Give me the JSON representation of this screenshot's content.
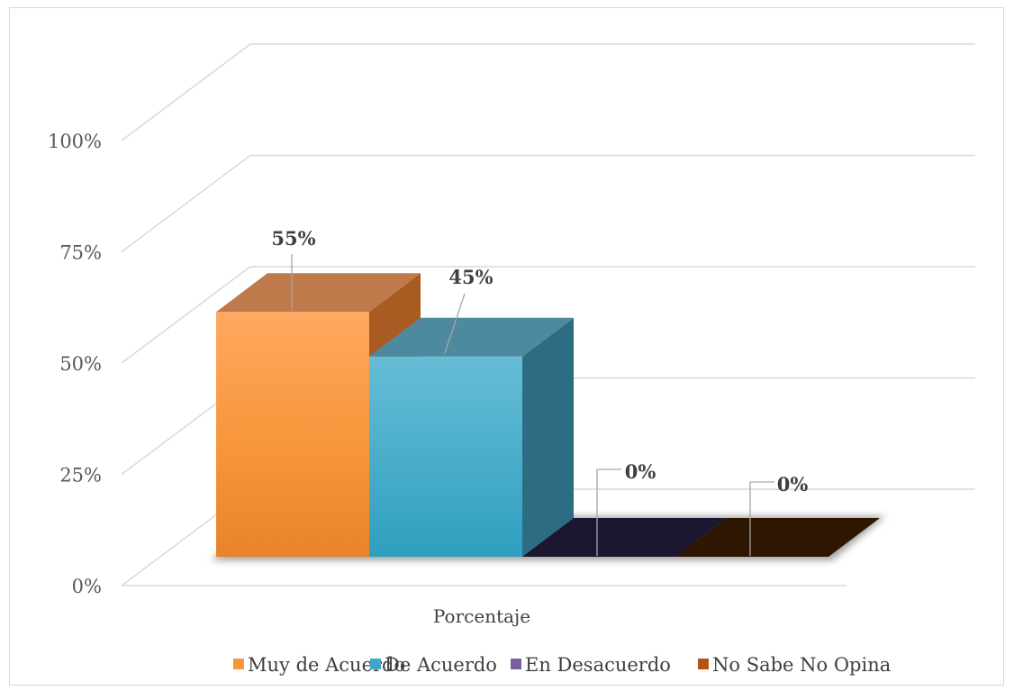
{
  "chart_data": {
    "type": "bar",
    "categories": [
      "Porcentaje"
    ],
    "series": [
      {
        "name": "Muy de Acuerdo",
        "values": [
          55
        ],
        "label": "55%",
        "color": "#f79646"
      },
      {
        "name": "De Acuerdo",
        "values": [
          45
        ],
        "label": "45%",
        "color": "#4bacc6"
      },
      {
        "name": "En Desacuerdo",
        "values": [
          0
        ],
        "label": "0%",
        "color": "#8064a2"
      },
      {
        "name": "No Sabe No Opina",
        "values": [
          0
        ],
        "label": "0%",
        "color": "#c0504d"
      }
    ],
    "y_ticks": [
      "0%",
      "25%",
      "50%",
      "75%",
      "100%"
    ],
    "ylim": [
      0,
      100
    ],
    "grid": true,
    "legend_position": "bottom",
    "style": "3d-clustered-column"
  }
}
